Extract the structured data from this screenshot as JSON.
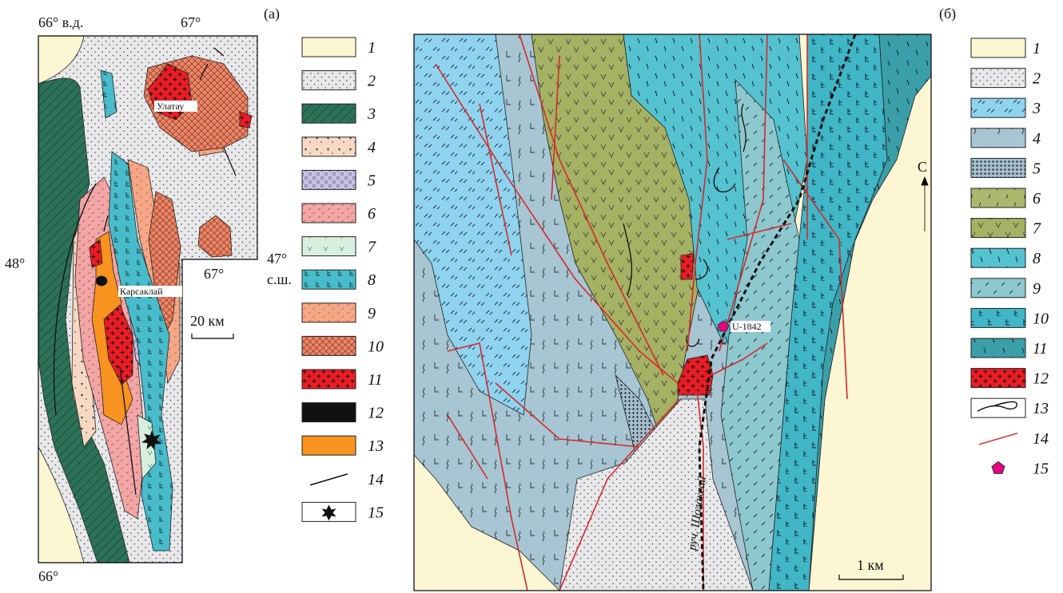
{
  "panel_a": {
    "label": "(а)",
    "lon_top_left": "66° в.д.",
    "lon_top_right": "67°",
    "lat_left": "48°",
    "lat_right": "47°",
    "lat_suffix": "с.ш.",
    "lon_inner": "67°",
    "lon_bottom": "66°",
    "place_1": "Улатау",
    "place_2": "Карсаклай",
    "scale": "20 км",
    "legend": [
      "1",
      "2",
      "3",
      "4",
      "5",
      "6",
      "7",
      "8",
      "9",
      "10",
      "11",
      "12",
      "13",
      "14",
      "15"
    ]
  },
  "panel_b": {
    "label": "(б)",
    "sample": "U-1842",
    "north": "С",
    "stream": "руч. Шолаксай",
    "scale": "1 км",
    "legend": [
      "1",
      "2",
      "3",
      "4",
      "5",
      "6",
      "7",
      "8",
      "9",
      "10",
      "11",
      "12",
      "13",
      "14",
      "15"
    ]
  }
}
